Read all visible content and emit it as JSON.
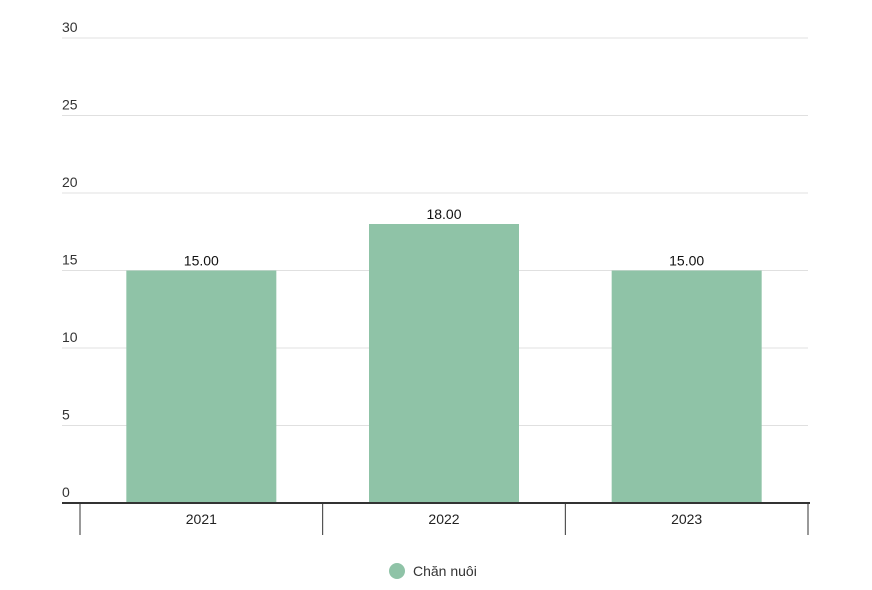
{
  "chart_data": {
    "type": "bar",
    "categories": [
      "2021",
      "2022",
      "2023"
    ],
    "series": [
      {
        "name": "Chăn nuôi",
        "values": [
          15.0,
          18.0,
          15.0
        ],
        "value_labels": [
          "15.00",
          "18.00",
          "15.00"
        ],
        "color": "#8fc3a7"
      }
    ],
    "title": "",
    "xlabel": "",
    "ylabel": "",
    "ylim": [
      0,
      30
    ],
    "yticks": [
      0,
      5,
      10,
      15,
      20,
      25,
      30
    ],
    "ytick_labels": [
      "0",
      "5",
      "10",
      "15",
      "20",
      "25",
      "30"
    ],
    "grid": true,
    "legend_position": "bottom-center",
    "colors": {
      "gridline": "#e0e0e0",
      "axis": "#333333"
    }
  }
}
